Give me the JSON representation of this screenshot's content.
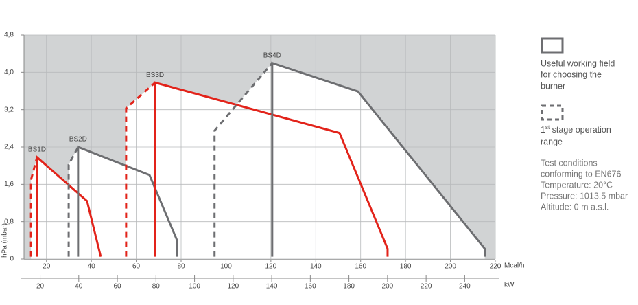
{
  "chart_data": {
    "type": "line",
    "y_label": "hPa (mbar)",
    "x_label": "Mcal/h",
    "x2_label": "kW",
    "xlim": [
      10,
      220
    ],
    "xticks": [
      20,
      40,
      60,
      80,
      100,
      120,
      140,
      160,
      180,
      200,
      220
    ],
    "x2lim": [
      11.63,
      255.86
    ],
    "x2ticks": [
      20,
      40,
      60,
      80,
      100,
      120,
      140,
      160,
      180,
      200,
      220,
      240
    ],
    "ylim": [
      0,
      4.8
    ],
    "yticks": [
      0,
      {
        "value": 0.8,
        "label": "0,8"
      },
      {
        "value": 1.6,
        "label": "1,6"
      },
      {
        "value": 2.4,
        "label": "2,4"
      },
      {
        "value": 3.2,
        "label": "3,2"
      },
      {
        "value": 4.0,
        "label": "4,0"
      },
      {
        "value": 4.8,
        "label": "4,8"
      }
    ],
    "grid": true,
    "background": "#d1d3d4",
    "series": [
      {
        "name": "BS1D",
        "color": "#e2231a",
        "x": [
          15.8,
          15.8,
          38.1,
          44.2
        ],
        "values": [
          0.05,
          2.18,
          1.24,
          0.05
        ],
        "stage1_x": [
          13.1,
          13.1,
          15.8
        ],
        "stage1_values": [
          0.05,
          1.69,
          2.18
        ]
      },
      {
        "name": "BS2D",
        "color": "#6d6e71",
        "x": [
          34.1,
          34.1,
          65.9,
          78.1,
          78.1
        ],
        "values": [
          0.05,
          2.4,
          1.8,
          0.41,
          0.05
        ],
        "stage1_x": [
          29.9,
          29.9,
          34.1
        ],
        "stage1_values": [
          0.05,
          2.02,
          2.4
        ]
      },
      {
        "name": "BS3D",
        "color": "#e2231a",
        "x": [
          68.4,
          68.4,
          150.6,
          172.0,
          172.0
        ],
        "values": [
          0.05,
          3.78,
          2.7,
          0.22,
          0.05
        ],
        "stage1_x": [
          55.5,
          55.5,
          68.4
        ],
        "stage1_values": [
          0.05,
          3.23,
          3.78
        ]
      },
      {
        "name": "BS4D",
        "color": "#6d6e71",
        "x": [
          120.6,
          120.6,
          158.8,
          215.3,
          215.3
        ],
        "values": [
          0.05,
          4.2,
          3.59,
          0.22,
          0.05
        ],
        "stage1_x": [
          94.9,
          94.9,
          120.6
        ],
        "stage1_values": [
          0.05,
          2.75,
          4.2
        ]
      }
    ]
  },
  "legend": {
    "working_field": [
      "Useful working field",
      "for choosing the",
      "burner"
    ],
    "stage": {
      "number": "1",
      "sup": "st",
      "rest": " stage operation",
      "line2": "range"
    },
    "conditions": [
      "Test conditions",
      "conforming to EN676",
      "Temperature: 20°C",
      "Pressure: 1013,5 mbar",
      "Altitude: 0 m a.s.l."
    ]
  }
}
